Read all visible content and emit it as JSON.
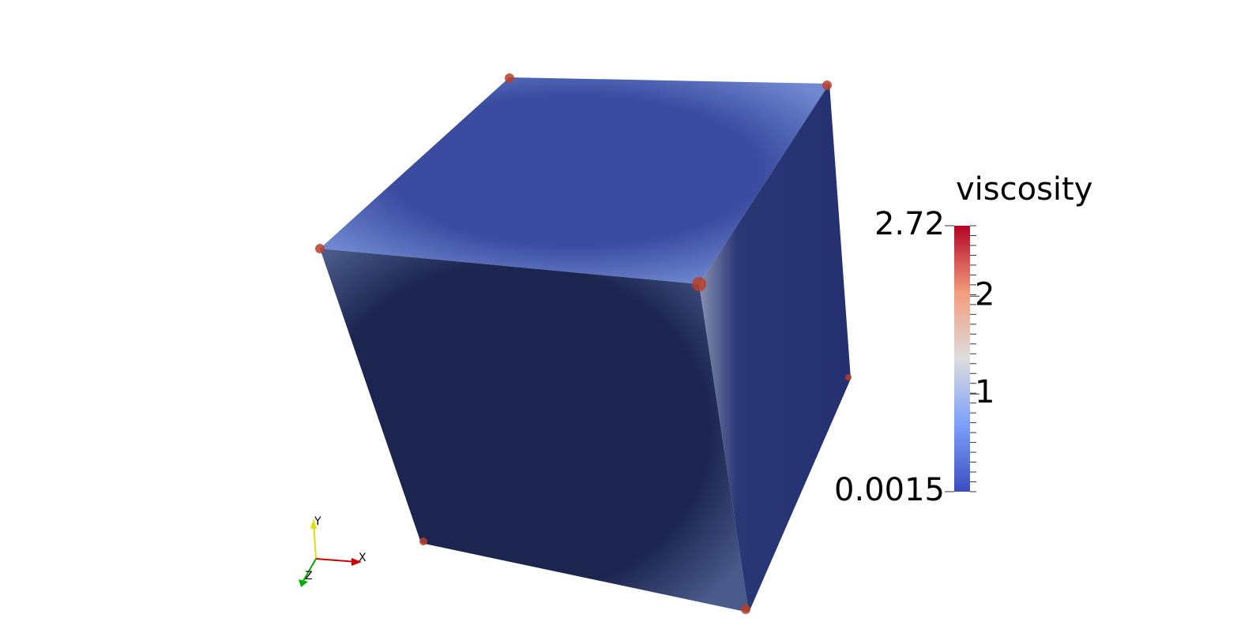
{
  "colorbar": {
    "title": "viscosity",
    "range": [
      0.0015,
      2.72
    ],
    "ticks": [
      0.0015,
      1,
      2,
      2.72
    ]
  },
  "axes": {
    "labels": [
      "X",
      "Y",
      "Z"
    ]
  }
}
